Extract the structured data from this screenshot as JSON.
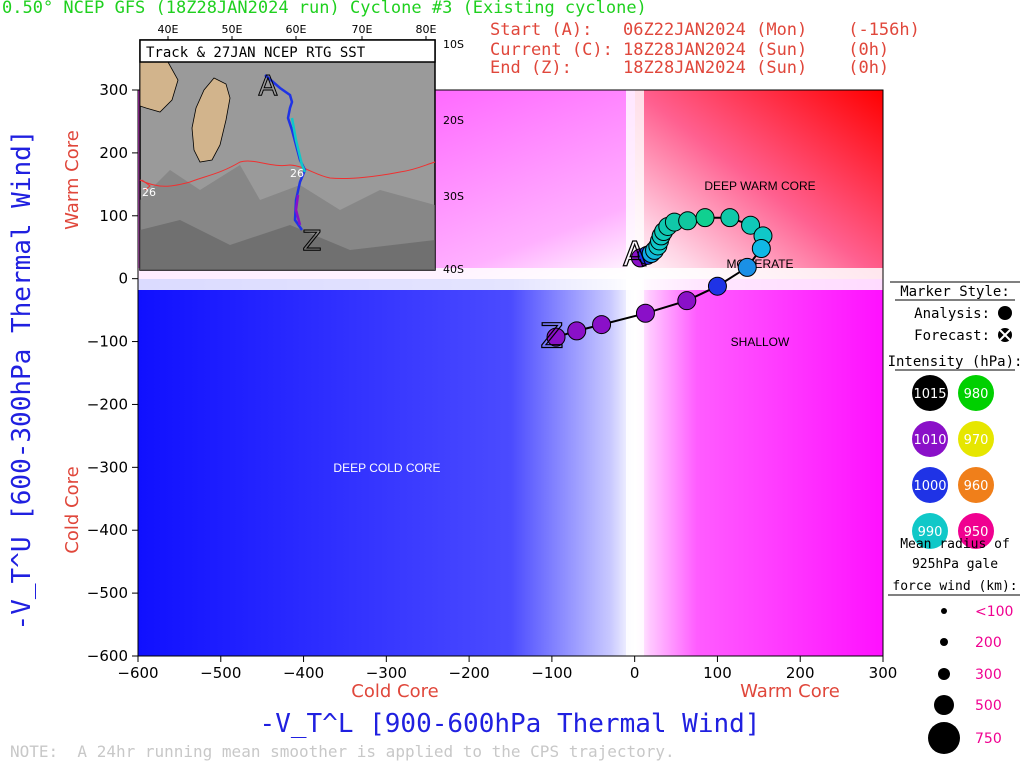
{
  "header": {
    "title": "0.50° NCEP GFS (18Z28JAN2024 run) Cyclone #3 (Existing cyclone)",
    "start_line": "Start (A):   06Z22JAN2024 (Mon)    (-156h)",
    "current_line": "Current (C): 18Z28JAN2024 (Sun)    (0h)",
    "end_line": "End (Z):     18Z28JAN2024 (Sun)    (0h)"
  },
  "note": "NOTE:  A 24hr running mean smoother is applied to the CPS trajectory.",
  "inset": {
    "title": "Track & 27JAN NCEP RTG SST",
    "lon_labels": [
      "40E",
      "50E",
      "60E",
      "70E",
      "80E"
    ],
    "lat_labels": [
      "10S",
      "20S",
      "30S",
      "40S"
    ],
    "sst_label": "26",
    "sst_label_2": "26"
  },
  "regions": {
    "deep_warm_core": "DEEP WARM CORE",
    "moderate": "MODERATE",
    "shallow": "SHALLOW",
    "deep_cold_core": "DEEP COLD CORE"
  },
  "legend": {
    "marker_style_title": "Marker Style:",
    "analysis_label": "Analysis:",
    "forecast_label": "Forecast:",
    "intensity_title": "Intensity (hPa):",
    "intensity_items": [
      {
        "value": "1015",
        "color": "#000000"
      },
      {
        "value": "980",
        "color": "#00d000"
      },
      {
        "value": "1010",
        "color": "#8a10c8"
      },
      {
        "value": "970",
        "color": "#e6e600"
      },
      {
        "value": "1000",
        "color": "#1f33e6"
      },
      {
        "value": "960",
        "color": "#f07f1a"
      },
      {
        "value": "990",
        "color": "#10c8c8"
      },
      {
        "value": "950",
        "color": "#f00090"
      }
    ],
    "radius_title_1": "Mean radius of",
    "radius_title_2": "925hPa gale",
    "radius_title_3": "force wind (km):",
    "radius_items": [
      "<100",
      "200",
      "300",
      "500",
      "750"
    ]
  },
  "chart_data": {
    "type": "scatter",
    "title": "0.50° NCEP GFS (18Z28JAN2024 run) Cyclone #3 (Existing cyclone)",
    "xlabel": "-V_T^L [900-600hPa Thermal Wind]",
    "ylabel": "-V_T^U [600-300hPa Thermal Wind]",
    "x_side_labels": [
      "Cold Core",
      "Warm Core"
    ],
    "y_side_labels": [
      "Cold Core",
      "Warm Core"
    ],
    "xlim": [
      -600,
      300
    ],
    "ylim": [
      -600,
      300
    ],
    "x_ticks": [
      -600,
      -500,
      -400,
      -300,
      -200,
      -100,
      0,
      100,
      200,
      300
    ],
    "y_ticks": [
      -600,
      -500,
      -400,
      -300,
      -200,
      -100,
      0,
      100,
      200,
      300
    ],
    "start_marker": "A",
    "end_marker": "Z",
    "start_point": [
      0,
      20
    ],
    "end_point": [
      -100,
      -90
    ],
    "series": [
      {
        "values": [
          {
            "x": 7,
            "y": 33,
            "color": "#8a10c8"
          },
          {
            "x": 15,
            "y": 37,
            "color": "#1f33e6"
          },
          {
            "x": 20,
            "y": 40,
            "color": "#10a8e6"
          },
          {
            "x": 24,
            "y": 45,
            "color": "#10b8d8"
          },
          {
            "x": 28,
            "y": 52,
            "color": "#10c8c8"
          },
          {
            "x": 30,
            "y": 60,
            "color": "#10c8c8"
          },
          {
            "x": 32,
            "y": 68,
            "color": "#10c8c0"
          },
          {
            "x": 35,
            "y": 75,
            "color": "#10c8b8"
          },
          {
            "x": 40,
            "y": 83,
            "color": "#10c8b0"
          },
          {
            "x": 48,
            "y": 90,
            "color": "#10c8a8"
          },
          {
            "x": 64,
            "y": 92,
            "color": "#10c8a0"
          },
          {
            "x": 85,
            "y": 97,
            "color": "#10d090"
          },
          {
            "x": 115,
            "y": 97,
            "color": "#10c8a8"
          },
          {
            "x": 140,
            "y": 85,
            "color": "#10c8b8"
          },
          {
            "x": 155,
            "y": 68,
            "color": "#10c8c8"
          },
          {
            "x": 153,
            "y": 48,
            "color": "#10b8e6"
          },
          {
            "x": 136,
            "y": 18,
            "color": "#1a90e6"
          },
          {
            "x": 100,
            "y": -12,
            "color": "#1f33e6"
          },
          {
            "x": 63,
            "y": -35,
            "color": "#8a10c8"
          },
          {
            "x": 13,
            "y": -55,
            "color": "#8a10c8"
          },
          {
            "x": -40,
            "y": -73,
            "color": "#8a10c8"
          },
          {
            "x": -70,
            "y": -83,
            "color": "#8a10c8"
          },
          {
            "x": -95,
            "y": -93,
            "color": "#8a10c8"
          }
        ]
      }
    ]
  }
}
